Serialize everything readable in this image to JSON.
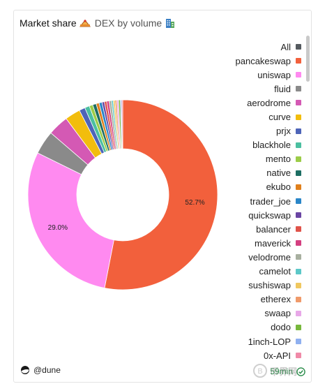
{
  "header": {
    "title": "Market share",
    "subtitle": "DEX by volume"
  },
  "footer": {
    "brand": "@dune",
    "age": "59min"
  },
  "watermark": {
    "text": "币界网"
  },
  "colors": {
    "accent_green": "#2a8c4a"
  },
  "chart_data": {
    "type": "pie",
    "donut": true,
    "legend_position": "right",
    "legend": [
      {
        "name": "All",
        "color": "#555a5f"
      },
      {
        "name": "pancakeswap",
        "color": "#f2603c"
      },
      {
        "name": "uniswap",
        "color": "#ff8af0"
      },
      {
        "name": "fluid",
        "color": "#8a8a8a"
      },
      {
        "name": "aerodrome",
        "color": "#d459b4"
      },
      {
        "name": "curve",
        "color": "#f2bd0d"
      },
      {
        "name": "prjx",
        "color": "#4d64b8"
      },
      {
        "name": "blackhole",
        "color": "#4bbfa0"
      },
      {
        "name": "mento",
        "color": "#9ccc48"
      },
      {
        "name": "native",
        "color": "#1d6e63"
      },
      {
        "name": "ekubo",
        "color": "#e0801c"
      },
      {
        "name": "trader_joe",
        "color": "#2a86c8"
      },
      {
        "name": "quickswap",
        "color": "#6a45a3"
      },
      {
        "name": "balancer",
        "color": "#e0534a"
      },
      {
        "name": "maverick",
        "color": "#d43f80"
      },
      {
        "name": "velodrome",
        "color": "#a8b0a0"
      },
      {
        "name": "camelot",
        "color": "#5cc8c8"
      },
      {
        "name": "sushiswap",
        "color": "#f0c860"
      },
      {
        "name": "etherex",
        "color": "#f09a6a"
      },
      {
        "name": "swaap",
        "color": "#e8a8e8"
      },
      {
        "name": "dodo",
        "color": "#78b83c"
      },
      {
        "name": "1inch-LOP",
        "color": "#8fb0f0"
      },
      {
        "name": "0x-API",
        "color": "#f08aa8"
      }
    ],
    "slices": [
      {
        "name": "pancakeswap",
        "value": 52.7,
        "label": "52.7%"
      },
      {
        "name": "uniswap",
        "value": 29.0,
        "label": "29.0%"
      },
      {
        "name": "fluid",
        "value": 4.0
      },
      {
        "name": "aerodrome",
        "value": 3.5
      },
      {
        "name": "curve",
        "value": 2.6
      },
      {
        "name": "prjx",
        "value": 1.0
      },
      {
        "name": "blackhole",
        "value": 0.8
      },
      {
        "name": "mento",
        "value": 0.6
      },
      {
        "name": "native",
        "value": 0.6
      },
      {
        "name": "ekubo",
        "value": 0.5
      },
      {
        "name": "trader_joe",
        "value": 0.5
      },
      {
        "name": "quickswap",
        "value": 0.4
      },
      {
        "name": "balancer",
        "value": 0.4
      },
      {
        "name": "maverick",
        "value": 0.4
      },
      {
        "name": "velodrome",
        "value": 0.4
      },
      {
        "name": "camelot",
        "value": 0.3
      },
      {
        "name": "sushiswap",
        "value": 0.3
      },
      {
        "name": "etherex",
        "value": 0.3
      },
      {
        "name": "swaap",
        "value": 0.3
      },
      {
        "name": "dodo",
        "value": 0.3
      },
      {
        "name": "1inch-LOP",
        "value": 0.2
      },
      {
        "name": "0x-API",
        "value": 0.2
      }
    ]
  }
}
